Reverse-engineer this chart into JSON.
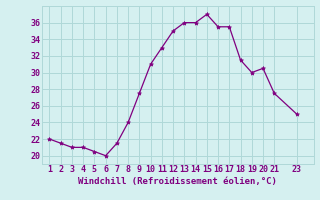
{
  "x": [
    1,
    2,
    3,
    4,
    5,
    6,
    7,
    8,
    9,
    10,
    11,
    12,
    13,
    14,
    15,
    16,
    17,
    18,
    19,
    20,
    21,
    23
  ],
  "y": [
    22,
    21.5,
    21,
    21,
    20.5,
    20,
    21.5,
    24,
    27.5,
    31,
    33,
    35,
    36,
    36,
    37,
    35.5,
    35.5,
    31.5,
    30,
    30.5,
    27.5,
    25
  ],
  "line_color": "#800080",
  "marker": "*",
  "marker_size": 3,
  "bg_color": "#d5f0f0",
  "grid_color": "#afd8d8",
  "xlabel": "Windchill (Refroidissement éolien,°C)",
  "xlabel_color": "#800080",
  "xlabel_fontsize": 6.5,
  "tick_color": "#800080",
  "tick_fontsize": 6,
  "ylim": [
    19,
    38
  ],
  "yticks": [
    20,
    22,
    24,
    26,
    28,
    30,
    32,
    34,
    36
  ],
  "xlim": [
    0.3,
    24.5
  ],
  "xticks": [
    1,
    2,
    3,
    4,
    5,
    6,
    7,
    8,
    9,
    10,
    11,
    12,
    13,
    14,
    15,
    16,
    17,
    18,
    19,
    20,
    21,
    23
  ]
}
